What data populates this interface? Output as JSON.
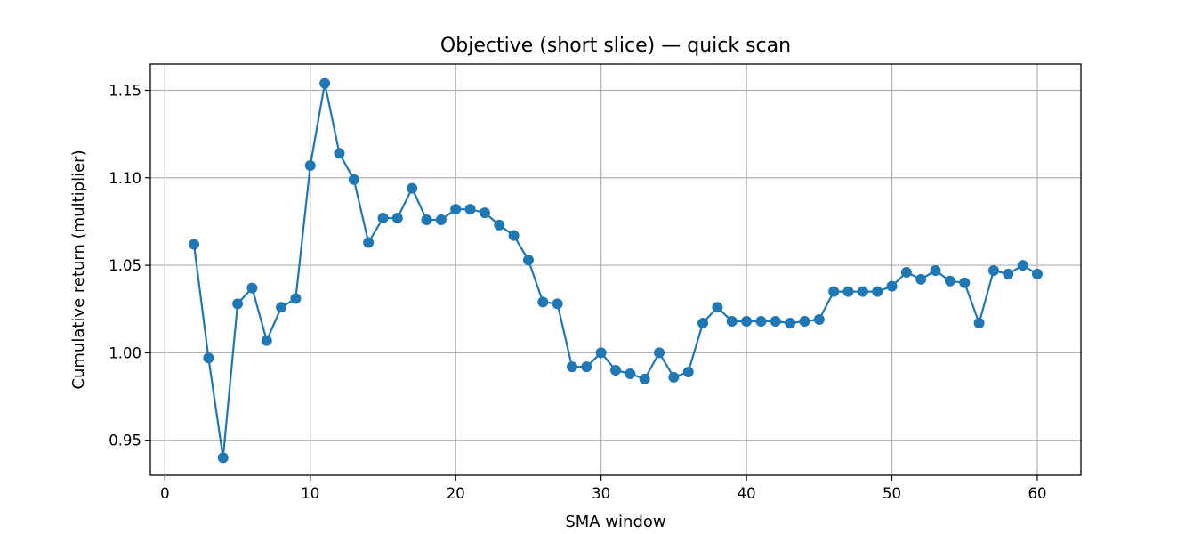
{
  "chart_data": {
    "type": "line",
    "title": "Objective (short slice) — quick scan",
    "xlabel": "SMA window",
    "ylabel": "Cumulative return (multiplier)",
    "xlim": [
      -1,
      63
    ],
    "ylim": [
      0.93,
      1.165
    ],
    "x_ticks": [
      0,
      10,
      20,
      30,
      40,
      50,
      60
    ],
    "y_ticks": [
      0.95,
      1.0,
      1.05,
      1.1,
      1.15
    ],
    "x_tick_labels": [
      "0",
      "10",
      "20",
      "30",
      "40",
      "50",
      "60"
    ],
    "y_tick_labels": [
      "0.95",
      "1.00",
      "1.05",
      "1.10",
      "1.15"
    ],
    "grid": true,
    "marker": "circle",
    "colors": {
      "series": "#1f77b4",
      "grid": "#b0b0b0"
    },
    "x": [
      2,
      3,
      4,
      5,
      6,
      7,
      8,
      9,
      10,
      11,
      12,
      13,
      14,
      15,
      16,
      17,
      18,
      19,
      20,
      21,
      22,
      23,
      24,
      25,
      26,
      27,
      28,
      29,
      30,
      31,
      32,
      33,
      34,
      35,
      36,
      37,
      38,
      39,
      40,
      41,
      42,
      43,
      44,
      45,
      46,
      47,
      48,
      49,
      50,
      51,
      52,
      53,
      54,
      55,
      56,
      57,
      58,
      59,
      60
    ],
    "y": [
      1.062,
      0.997,
      0.94,
      1.028,
      1.037,
      1.007,
      1.026,
      1.031,
      1.107,
      1.154,
      1.114,
      1.099,
      1.063,
      1.077,
      1.077,
      1.094,
      1.076,
      1.076,
      1.082,
      1.082,
      1.08,
      1.073,
      1.067,
      1.053,
      1.029,
      1.028,
      0.992,
      0.992,
      1.0,
      0.99,
      0.988,
      0.985,
      1.0,
      0.986,
      0.989,
      1.017,
      1.026,
      1.018,
      1.018,
      1.018,
      1.018,
      1.017,
      1.018,
      1.019,
      1.035,
      1.035,
      1.035,
      1.035,
      1.038,
      1.046,
      1.042,
      1.047,
      1.041,
      1.04,
      1.017,
      1.047,
      1.045,
      1.05,
      1.045
    ]
  }
}
